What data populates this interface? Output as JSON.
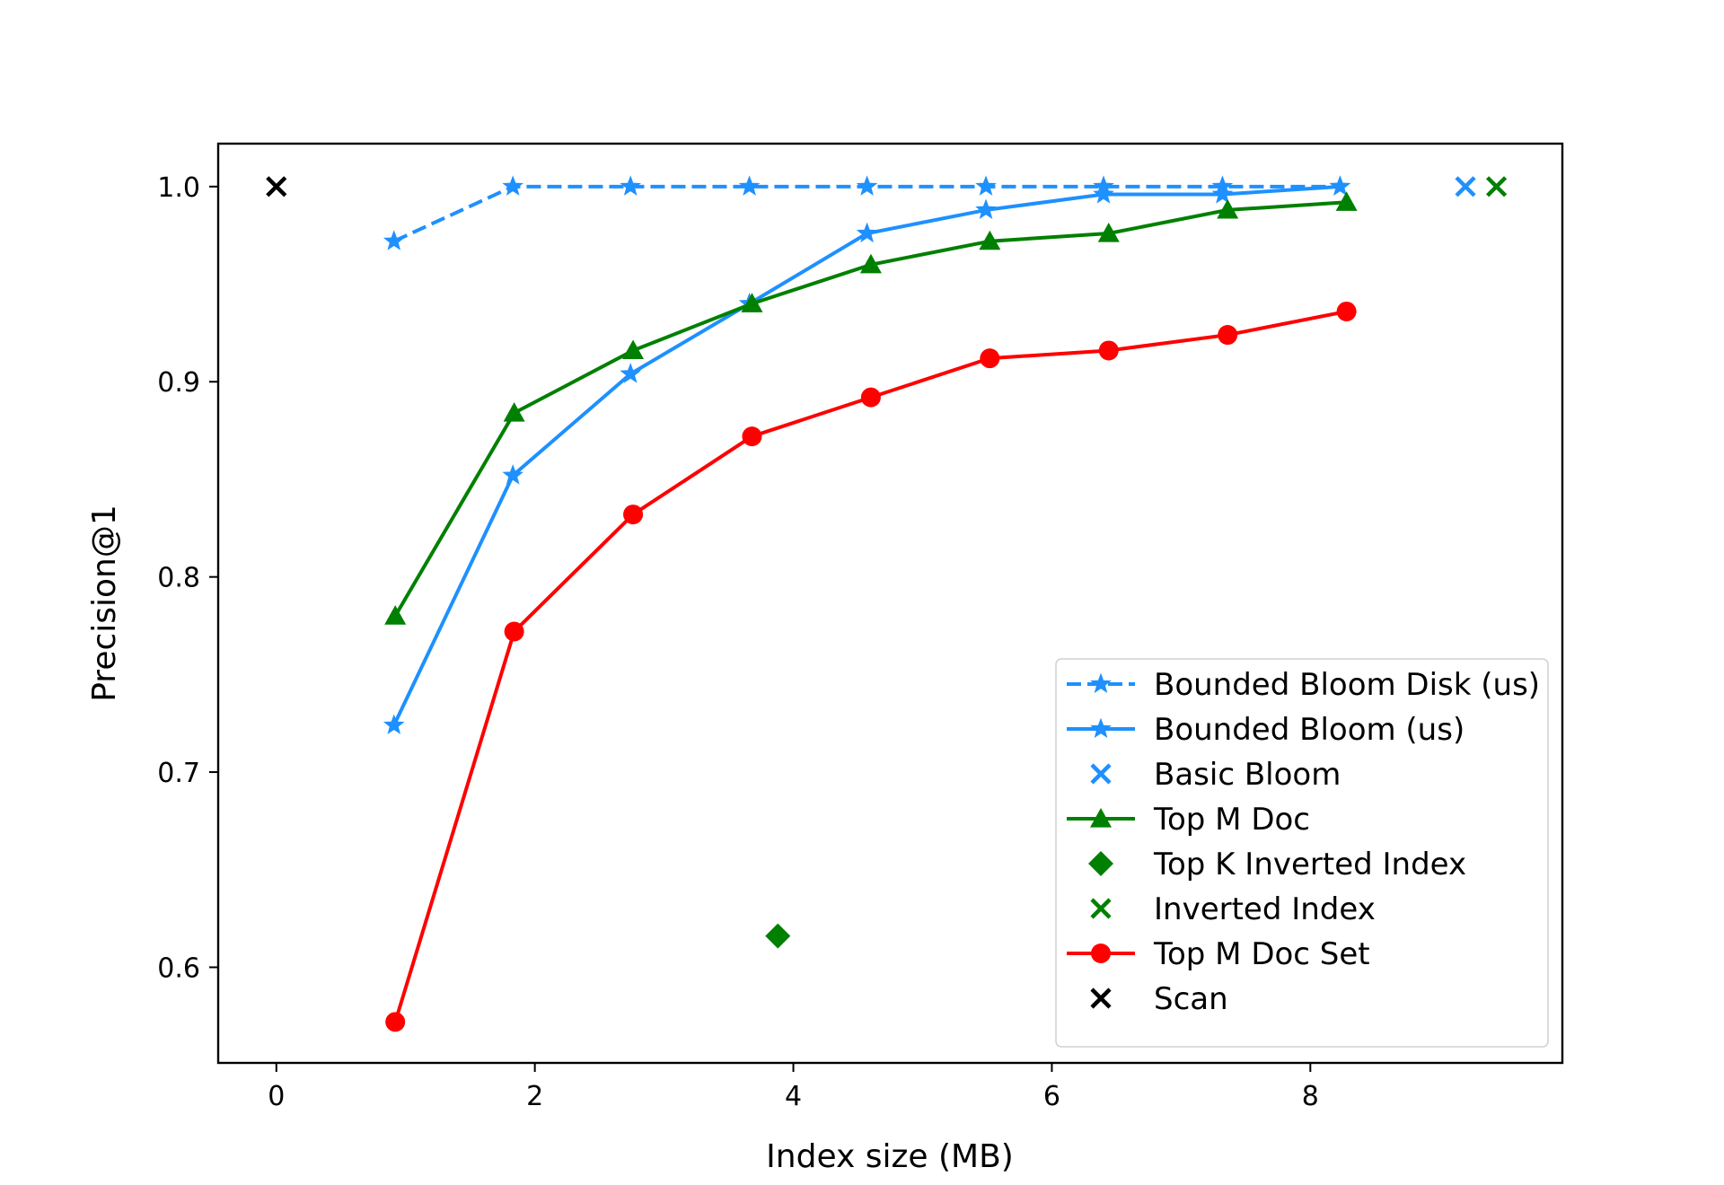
{
  "chart_data": {
    "type": "line",
    "title": "",
    "xlabel": "Index size (MB)",
    "ylabel": "Precision@1",
    "xlim": [
      -0.45,
      9.95
    ],
    "ylim": [
      0.551,
      1.022
    ],
    "x_ticks": [
      0,
      2,
      4,
      6,
      8
    ],
    "y_ticks": [
      0.6,
      0.7,
      0.8,
      0.9,
      1.0
    ],
    "x_tick_labels": [
      "0",
      "2",
      "4",
      "6",
      "8"
    ],
    "y_tick_labels": [
      "0.6",
      "0.7",
      "0.8",
      "0.9",
      "1.0"
    ],
    "grid": false,
    "legend_position": "lower-right",
    "series": [
      {
        "name": "Bounded Bloom Disk (us)",
        "style": "dashed-line-star",
        "color": "#1e90ff",
        "x": [
          0.91,
          1.83,
          2.74,
          3.66,
          4.57,
          5.49,
          6.4,
          7.32,
          8.23
        ],
        "y": [
          0.972,
          1.0,
          1.0,
          1.0,
          1.0,
          1.0,
          1.0,
          1.0,
          1.0
        ]
      },
      {
        "name": "Bounded Bloom (us)",
        "style": "line-star",
        "color": "#1e90ff",
        "x": [
          0.91,
          1.83,
          2.74,
          3.66,
          4.57,
          5.49,
          6.4,
          7.32,
          8.23
        ],
        "y": [
          0.724,
          0.852,
          0.904,
          0.94,
          0.976,
          0.988,
          0.996,
          0.996,
          1.0
        ]
      },
      {
        "name": "Basic Bloom",
        "style": "marker-x",
        "color": "#1e90ff",
        "x": [
          9.2
        ],
        "y": [
          1.0
        ]
      },
      {
        "name": "Top M Doc",
        "style": "line-triangle",
        "color": "#008000",
        "x": [
          0.92,
          1.84,
          2.76,
          3.68,
          4.6,
          5.52,
          6.44,
          7.36,
          8.28
        ],
        "y": [
          0.78,
          0.884,
          0.916,
          0.94,
          0.96,
          0.972,
          0.976,
          0.988,
          0.992
        ]
      },
      {
        "name": "Top K Inverted Index",
        "style": "marker-diamond",
        "color": "#008000",
        "x": [
          3.88
        ],
        "y": [
          0.616
        ]
      },
      {
        "name": "Inverted Index",
        "style": "marker-x",
        "color": "#008000",
        "x": [
          9.44
        ],
        "y": [
          1.0
        ]
      },
      {
        "name": "Top M Doc Set",
        "style": "line-circle",
        "color": "#ff0000",
        "x": [
          0.92,
          1.84,
          2.76,
          3.68,
          4.6,
          5.52,
          6.44,
          7.36,
          8.28
        ],
        "y": [
          0.572,
          0.772,
          0.832,
          0.872,
          0.892,
          0.912,
          0.916,
          0.924,
          0.936
        ]
      },
      {
        "name": "Scan",
        "style": "marker-x",
        "color": "#000000",
        "x": [
          0
        ],
        "y": [
          1.0
        ]
      }
    ]
  }
}
